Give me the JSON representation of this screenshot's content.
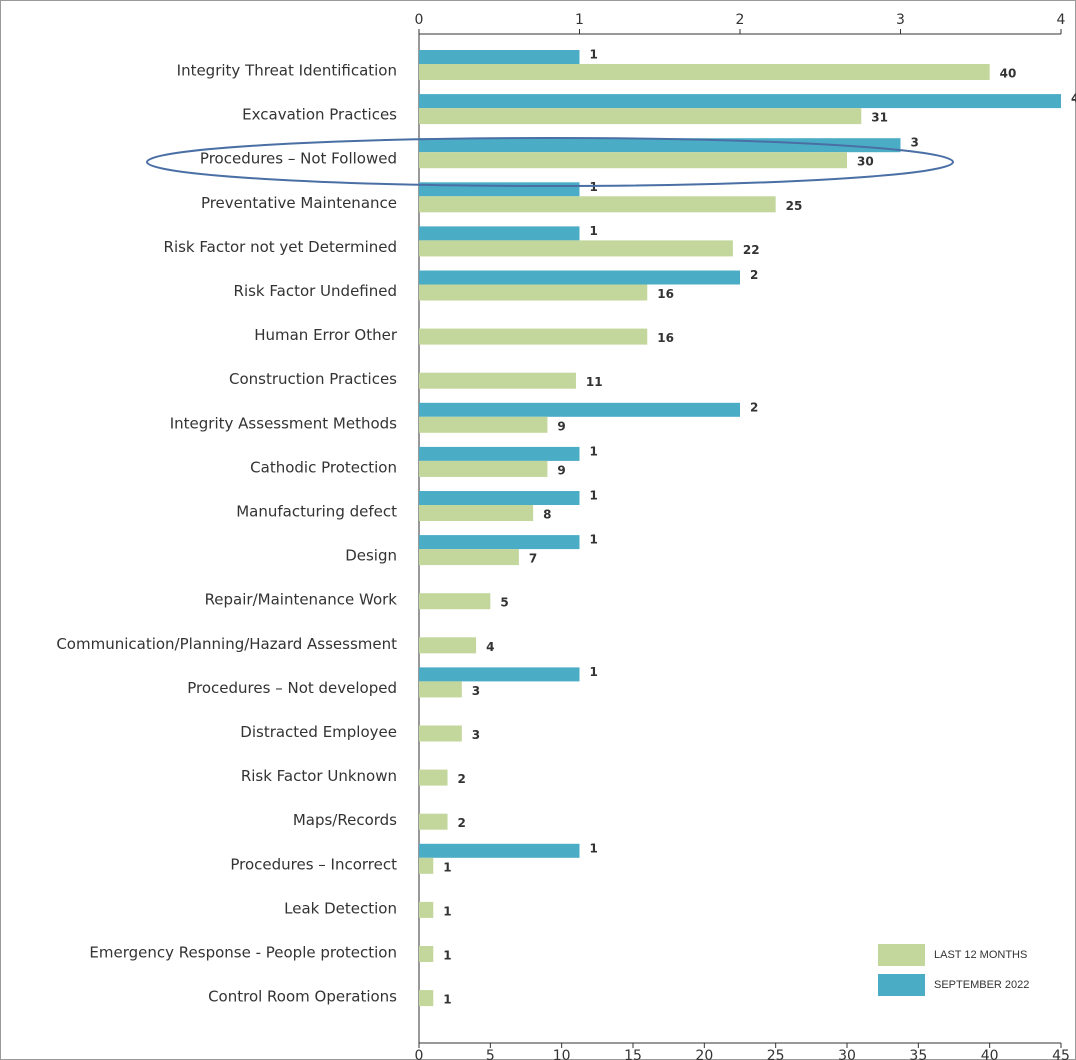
{
  "chart_data": {
    "type": "bar",
    "orientation": "horizontal",
    "categories": [
      "Integrity Threat Identification",
      "Excavation Practices",
      "Procedures – Not Followed",
      "Preventative Maintenance",
      "Risk Factor not yet Determined",
      "Risk Factor Undefined",
      "Human Error Other",
      "Construction Practices",
      "Integrity Assessment Methods",
      "Cathodic Protection",
      "Manufacturing defect",
      "Design",
      "Repair/Maintenance Work",
      "Communication/Planning/Hazard Assessment",
      "Procedures – Not developed",
      "Distracted Employee",
      "Risk Factor Unknown",
      "Maps/Records",
      "Procedures – Incorrect",
      "Leak Detection",
      "Emergency Response - People protection",
      "Control Room Operations"
    ],
    "series": [
      {
        "name": "SEPTEMBER 2022",
        "color": "#4bacc6",
        "axis": "x2",
        "values": [
          1,
          4,
          3,
          1,
          1,
          2,
          null,
          null,
          2,
          1,
          1,
          1,
          null,
          null,
          1,
          null,
          null,
          null,
          1,
          null,
          null,
          null
        ]
      },
      {
        "name": "LAST 12 MONTHS",
        "color": "#c3d69b",
        "values": [
          40,
          31,
          30,
          25,
          22,
          16,
          16,
          11,
          9,
          9,
          8,
          7,
          5,
          4,
          3,
          3,
          2,
          2,
          1,
          1,
          1,
          1
        ]
      }
    ],
    "xlim": [
      0,
      45
    ],
    "xticks": [
      0,
      5,
      10,
      15,
      20,
      25,
      30,
      35,
      40,
      45
    ],
    "x2lim": [
      0,
      4
    ],
    "x2ticks": [
      0,
      1,
      2,
      3,
      4
    ],
    "legend": "bottom-right"
  }
}
